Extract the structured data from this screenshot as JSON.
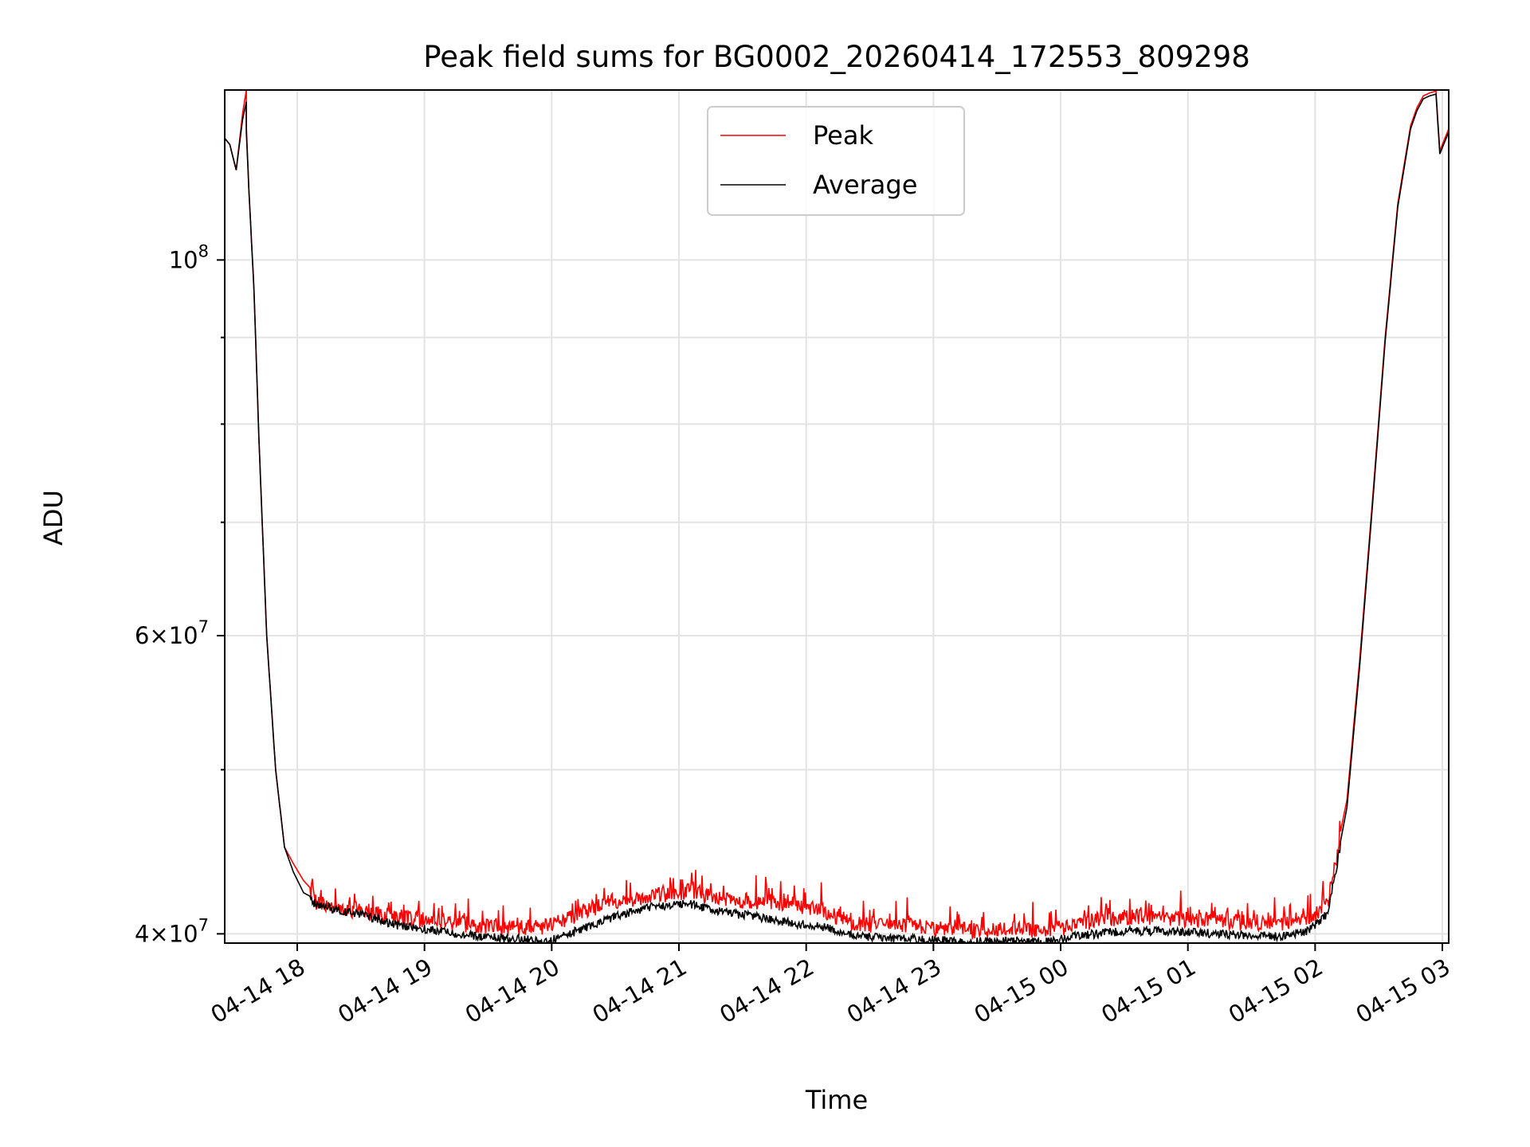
{
  "chart_data": {
    "type": "line",
    "title": "Peak field sums for BG0002_20260414_172553_809298",
    "xlabel": "Time",
    "ylabel": "ADU",
    "yscale": "log",
    "ylim": [
      39500000,
      126000000
    ],
    "x_unit": "hours since 2026-04-14 17:00 (data time)",
    "xlim": [
      0.43,
      10.05
    ],
    "x_ticks": [
      {
        "value": 1,
        "label": "04-14 18"
      },
      {
        "value": 2,
        "label": "04-14 19"
      },
      {
        "value": 3,
        "label": "04-14 20"
      },
      {
        "value": 4,
        "label": "04-14 21"
      },
      {
        "value": 5,
        "label": "04-14 22"
      },
      {
        "value": 6,
        "label": "04-14 23"
      },
      {
        "value": 7,
        "label": "04-15 00"
      },
      {
        "value": 8,
        "label": "04-15 01"
      },
      {
        "value": 9,
        "label": "04-15 02"
      },
      {
        "value": 10,
        "label": "04-15 03"
      }
    ],
    "y_ticks": [
      {
        "value": 40000000,
        "base": "4×10",
        "exp": "7"
      },
      {
        "value": 60000000,
        "base": "6×10",
        "exp": "7"
      },
      {
        "value": 100000000,
        "base": "10",
        "exp": "8"
      }
    ],
    "y_minor_ticks": [
      50000000,
      70000000,
      80000000,
      90000000
    ],
    "grid": true,
    "legend_position": "top-center",
    "series": [
      {
        "name": "Peak",
        "color": "#ff0000",
        "x": [
          0.43,
          0.47,
          0.52,
          0.57,
          0.6,
          0.6,
          0.62,
          0.66,
          0.7,
          0.76,
          0.83,
          0.9,
          0.97,
          1.05,
          1.15,
          1.3,
          1.5,
          1.8,
          2.0,
          2.3,
          2.6,
          2.9,
          3.0,
          3.2,
          3.5,
          3.8,
          4.1,
          4.3,
          4.6,
          4.9,
          5.1,
          5.4,
          5.7,
          6.0,
          6.3,
          6.6,
          6.9,
          7.2,
          7.5,
          7.8,
          8.1,
          8.4,
          8.7,
          8.95,
          9.1,
          9.25,
          9.35,
          9.45,
          9.55,
          9.65,
          9.75,
          9.8,
          9.85,
          9.9,
          9.95,
          9.98,
          10.0,
          10.05
        ],
        "y": [
          118000000,
          117000000,
          113000000,
          122000000,
          126000000,
          120000000,
          110000000,
          96000000,
          78000000,
          60000000,
          50000000,
          45000000,
          44000000,
          43000000,
          42200000,
          41900000,
          41700000,
          41300000,
          41200000,
          41000000,
          40700000,
          40800000,
          40900000,
          41500000,
          42300000,
          42600000,
          42900000,
          42400000,
          42300000,
          42100000,
          41800000,
          41000000,
          40900000,
          40800000,
          40600000,
          40700000,
          40600000,
          41100000,
          41400000,
          41300000,
          41200000,
          41100000,
          41000000,
          41200000,
          42200000,
          48000000,
          58000000,
          72000000,
          90000000,
          108000000,
          120000000,
          123000000,
          125000000,
          125500000,
          125800000,
          116000000,
          117000000,
          119500000
        ]
      },
      {
        "name": "Average",
        "color": "#000000",
        "x": [
          0.43,
          0.47,
          0.52,
          0.57,
          0.6,
          0.6,
          0.62,
          0.66,
          0.7,
          0.76,
          0.83,
          0.9,
          0.97,
          1.05,
          1.15,
          1.3,
          1.5,
          1.8,
          2.0,
          2.3,
          2.6,
          2.9,
          3.0,
          3.2,
          3.5,
          3.8,
          4.1,
          4.3,
          4.6,
          4.9,
          5.1,
          5.4,
          5.7,
          6.0,
          6.3,
          6.6,
          6.9,
          7.2,
          7.5,
          7.8,
          8.1,
          8.4,
          8.7,
          8.95,
          9.1,
          9.25,
          9.35,
          9.45,
          9.55,
          9.65,
          9.75,
          9.8,
          9.85,
          9.9,
          9.95,
          9.98,
          10.0,
          10.05
        ],
        "y": [
          118000000,
          117000000,
          113000000,
          121000000,
          124000000,
          119000000,
          110000000,
          96000000,
          78000000,
          60000000,
          50000000,
          45000000,
          43500000,
          42300000,
          41900000,
          41600000,
          41300000,
          40700000,
          40500000,
          40200000,
          40000000,
          39900000,
          39900000,
          40400000,
          41200000,
          41800000,
          41900000,
          41500000,
          41200000,
          40800000,
          40700000,
          40100000,
          40000000,
          39900000,
          39800000,
          39900000,
          39800000,
          40200000,
          40400000,
          40400000,
          40300000,
          40200000,
          40100000,
          40400000,
          41400000,
          47500000,
          57500000,
          71500000,
          89500000,
          107500000,
          119500000,
          122500000,
          124500000,
          125000000,
          125300000,
          115500000,
          116500000,
          119000000
        ]
      }
    ]
  }
}
